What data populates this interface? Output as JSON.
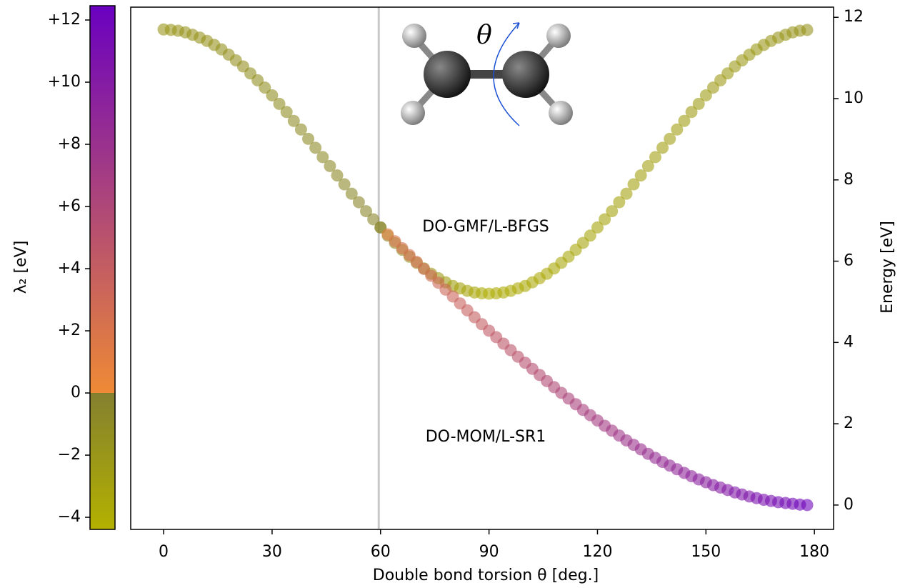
{
  "chart_data": {
    "type": "scatter",
    "xlabel": "Double bond torsion θ [deg.]",
    "ylabel": "Energy [eV]",
    "molecule_label": "θ",
    "xlim": [
      -9.1,
      185.3
    ],
    "xticks": [
      0,
      30,
      60,
      90,
      120,
      150,
      180
    ],
    "ylim": [
      -0.6,
      12.25
    ],
    "yticks": [
      0,
      2,
      4,
      6,
      8,
      10,
      12
    ],
    "vline": 59.5,
    "colorbar": {
      "label": "λ₂ [eV]",
      "clim": [
        -4.39,
        12.46
      ],
      "ticks": [
        {
          "value": -4,
          "label": "−4"
        },
        {
          "value": -2,
          "label": "−2"
        },
        0,
        {
          "value": 2,
          "label": "+2"
        },
        {
          "value": 4,
          "label": "+4"
        },
        {
          "value": 6,
          "label": "+6"
        },
        {
          "value": 8,
          "label": "+8"
        },
        {
          "value": 10,
          "label": "+10"
        },
        {
          "value": 12,
          "label": "+12"
        }
      ],
      "cmap": [
        {
          "value": -4.39,
          "color": "#b3b100"
        },
        {
          "value": 0,
          "color": "#848030"
        },
        {
          "value": 0,
          "color": "#ee8a35"
        },
        {
          "value": 12.46,
          "color": "#6a00c0"
        }
      ]
    },
    "series": [
      {
        "name": "DO-GMF/L-BFGS",
        "x": [
          0,
          2,
          4,
          6,
          8,
          10,
          12,
          14,
          16,
          18,
          20,
          22,
          24,
          26,
          28,
          30,
          32,
          34,
          36,
          38,
          40,
          42,
          44,
          46,
          48,
          50,
          52,
          54,
          56,
          58,
          60,
          62,
          64,
          66,
          68,
          70,
          72,
          74,
          76,
          78,
          80,
          82,
          84,
          86,
          88,
          90,
          92,
          94,
          96,
          98,
          100,
          102,
          104,
          106,
          108,
          110,
          112,
          114,
          116,
          118,
          120,
          122,
          124,
          126,
          128,
          130,
          132,
          134,
          136,
          138,
          140,
          142,
          144,
          146,
          148,
          150,
          152,
          154,
          156,
          158,
          160,
          162,
          164,
          166,
          168,
          170,
          172,
          174,
          176,
          178
        ],
        "values": [
          11.7,
          11.69,
          11.67,
          11.63,
          11.57,
          11.5,
          11.42,
          11.32,
          11.21,
          11.08,
          10.94,
          10.79,
          10.62,
          10.45,
          10.27,
          10.08,
          9.87,
          9.67,
          9.45,
          9.24,
          9.01,
          8.79,
          8.56,
          8.34,
          8.11,
          7.89,
          7.66,
          7.45,
          7.23,
          7.03,
          6.83,
          6.63,
          6.45,
          6.28,
          6.11,
          5.96,
          5.82,
          5.69,
          5.58,
          5.48,
          5.39,
          5.33,
          5.27,
          5.23,
          5.21,
          5.2,
          5.21,
          5.23,
          5.27,
          5.33,
          5.39,
          5.48,
          5.58,
          5.69,
          5.82,
          5.96,
          6.11,
          6.28,
          6.45,
          6.63,
          6.83,
          7.03,
          7.23,
          7.45,
          7.66,
          7.89,
          8.11,
          8.34,
          8.56,
          8.79,
          9.01,
          9.24,
          9.45,
          9.67,
          9.87,
          10.08,
          10.27,
          10.45,
          10.62,
          10.79,
          10.94,
          11.08,
          11.21,
          11.32,
          11.42,
          11.5,
          11.57,
          11.63,
          11.67,
          11.69
        ],
        "c": [
          -2,
          -1.95,
          -1.9,
          -1.85,
          -1.8,
          -1.75,
          -1.7,
          -1.65,
          -1.6,
          -1.55,
          -1.5,
          -1.45,
          -1.4,
          -1.35,
          -1.3,
          -1.25,
          -1.2,
          -1.15,
          -1.1,
          -1.05,
          -1,
          -0.95,
          -0.9,
          -0.85,
          -0.8,
          -0.75,
          -0.7,
          -0.65,
          -0.6,
          -0.55,
          -0.5,
          -0.73,
          -0.97,
          -1.2,
          -1.43,
          -1.67,
          -1.9,
          -2.13,
          -2.37,
          -2.6,
          -2.83,
          -3.07,
          -3.3,
          -3.53,
          -3.77,
          -4,
          -3.95,
          -3.9,
          -3.85,
          -3.8,
          -3.75,
          -3.7,
          -3.65,
          -3.6,
          -3.55,
          -3.5,
          -3.45,
          -3.4,
          -3.35,
          -3.3,
          -3.25,
          -3.2,
          -3.15,
          -3.1,
          -3.05,
          -3,
          -2.95,
          -2.9,
          -2.85,
          -2.8,
          -2.75,
          -2.7,
          -2.65,
          -2.6,
          -2.55,
          -2.5,
          -2.45,
          -2.4,
          -2.35,
          -2.3,
          -2.25,
          -2.2,
          -2.15,
          -2.1,
          -2.05,
          -2,
          -1.95,
          -1.9,
          -1.85,
          -1.8
        ]
      },
      {
        "name": "DO-MOM/L-SR1",
        "x": [
          60,
          62,
          64,
          66,
          68,
          70,
          72,
          74,
          76,
          78,
          80,
          82,
          84,
          86,
          88,
          90,
          92,
          94,
          96,
          98,
          100,
          102,
          104,
          106,
          108,
          110,
          112,
          114,
          116,
          118,
          120,
          122,
          124,
          126,
          128,
          130,
          132,
          134,
          136,
          138,
          140,
          142,
          144,
          146,
          148,
          150,
          152,
          154,
          156,
          158,
          160,
          162,
          164,
          166,
          168,
          170,
          172,
          174,
          176,
          178
        ],
        "values": [
          6.83,
          6.66,
          6.49,
          6.32,
          6.15,
          5.98,
          5.81,
          5.64,
          5.47,
          5.3,
          5.13,
          4.96,
          4.79,
          4.62,
          4.45,
          4.29,
          4.13,
          3.97,
          3.81,
          3.65,
          3.5,
          3.35,
          3.2,
          3.05,
          2.9,
          2.76,
          2.62,
          2.48,
          2.34,
          2.21,
          2.08,
          1.95,
          1.83,
          1.71,
          1.59,
          1.48,
          1.37,
          1.26,
          1.16,
          1.06,
          0.97,
          0.88,
          0.79,
          0.71,
          0.63,
          0.56,
          0.49,
          0.43,
          0.37,
          0.31,
          0.26,
          0.21,
          0.17,
          0.13,
          0.1,
          0.07,
          0.05,
          0.03,
          0.01,
          0
        ],
        "c": [
          -0.5,
          1,
          2,
          2.2,
          2.4,
          2.5,
          2.7,
          2.9,
          3.1,
          3.2,
          3.4,
          3.6,
          3.8,
          3.9,
          4.1,
          4.3,
          4.5,
          4.6,
          4.8,
          5,
          5.2,
          5.3,
          5.5,
          5.7,
          5.9,
          6,
          6.2,
          6.4,
          6.6,
          6.7,
          6.9,
          7.1,
          7.3,
          7.4,
          7.6,
          7.8,
          8,
          8.1,
          8.3,
          8.5,
          8.7,
          8.8,
          9,
          9.2,
          9.4,
          9.5,
          9.7,
          9.9,
          10.1,
          10.2,
          10.4,
          10.6,
          10.8,
          10.9,
          11.1,
          11.3,
          11.5,
          11.6,
          11.8,
          12
        ]
      }
    ]
  }
}
